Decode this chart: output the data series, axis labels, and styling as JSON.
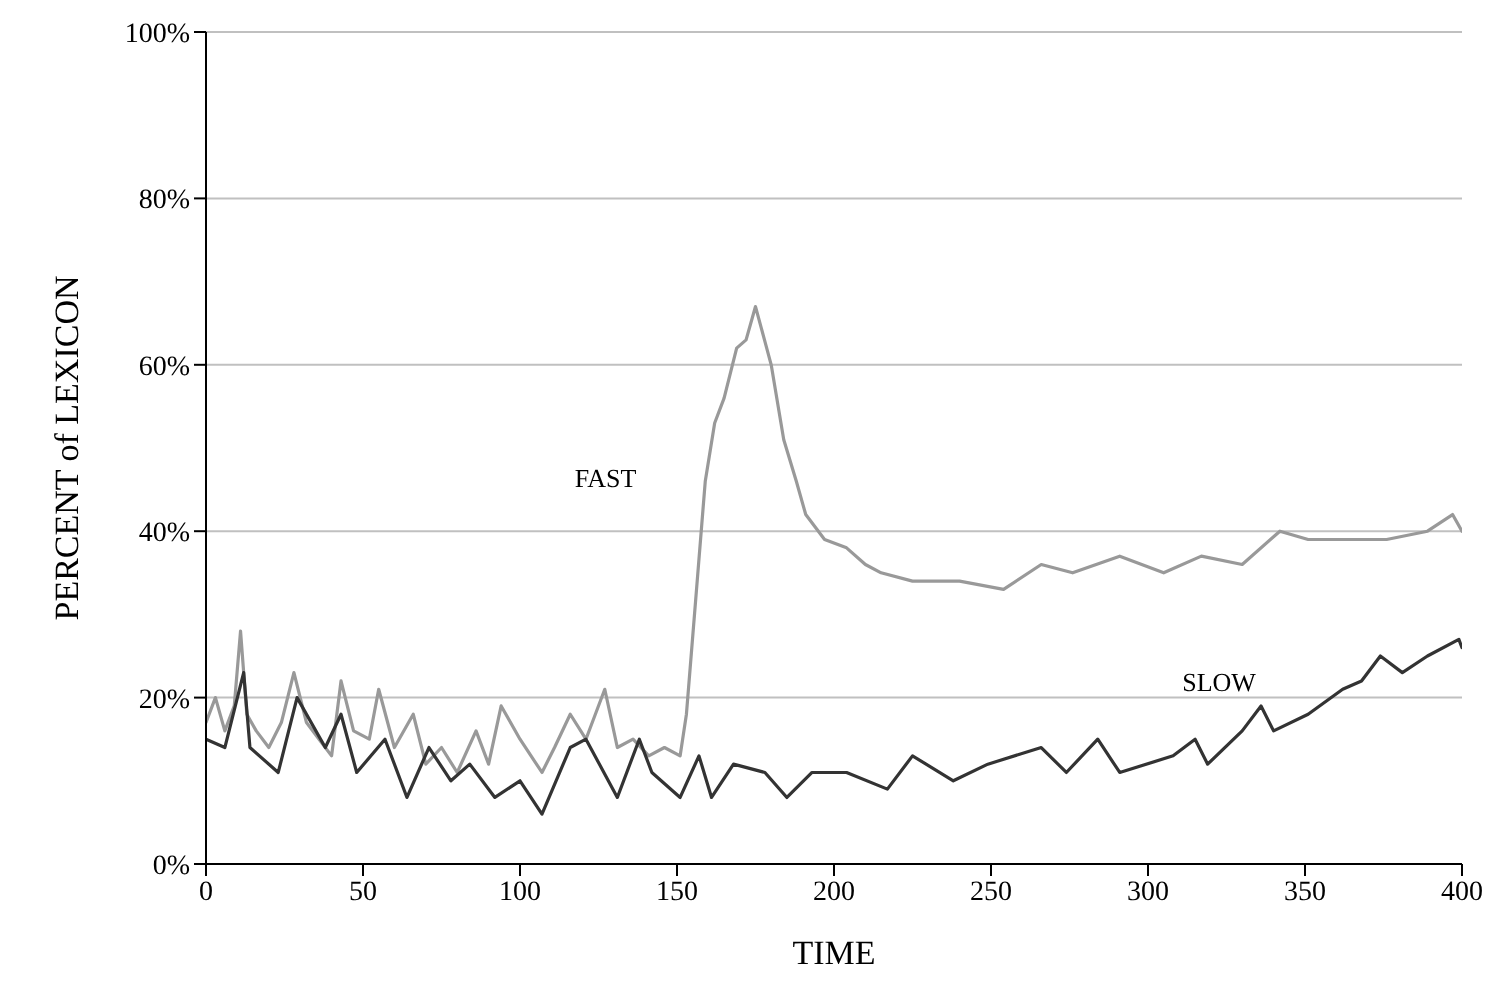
{
  "chart_data": {
    "type": "line",
    "xlabel": "TIME",
    "ylabel": "PERCENT of LEXICON",
    "xlim": [
      0,
      400
    ],
    "xticks": [
      0,
      50,
      100,
      150,
      200,
      250,
      300,
      350,
      400
    ],
    "ylim": [
      0,
      100
    ],
    "yticks": [
      {
        "value": 0,
        "label": "0%"
      },
      {
        "value": 20,
        "label": "20%"
      },
      {
        "value": 40,
        "label": "40%"
      },
      {
        "value": 60,
        "label": "60%"
      },
      {
        "value": 80,
        "label": "80%"
      },
      {
        "value": 100,
        "label": "100%"
      }
    ],
    "grid": "y",
    "marker": "none",
    "line_style": "solid",
    "series": [
      {
        "name": "FAST",
        "color": "#999999",
        "x": [
          0,
          3,
          6,
          9,
          11,
          13,
          16,
          20,
          24,
          28,
          32,
          36,
          40,
          43,
          47,
          52,
          55,
          60,
          66,
          70,
          75,
          80,
          86,
          90,
          94,
          100,
          107,
          111,
          116,
          121,
          127,
          131,
          136,
          141,
          146,
          151,
          153,
          156,
          159,
          162,
          165,
          169,
          172,
          175,
          180,
          184,
          188,
          191,
          197,
          204,
          210,
          215,
          225,
          240,
          254,
          266,
          276,
          291,
          305,
          317,
          330,
          342,
          351,
          364,
          376,
          389,
          397,
          400
        ],
        "values": [
          17,
          20,
          16,
          19,
          28,
          18,
          16,
          14,
          17,
          23,
          17,
          15,
          13,
          22,
          16,
          15,
          21,
          14,
          18,
          12,
          14,
          11,
          16,
          12,
          19,
          15,
          11,
          14,
          18,
          15,
          21,
          14,
          15,
          13,
          14,
          13,
          18,
          32,
          46,
          53,
          56,
          62,
          63,
          67,
          60,
          51,
          46,
          42,
          39,
          38,
          36,
          35,
          34,
          34,
          33,
          36,
          35,
          37,
          35,
          37,
          36,
          40,
          39,
          39,
          39,
          40,
          42,
          40
        ]
      },
      {
        "name": "SLOW",
        "color": "#333333",
        "x": [
          0,
          6,
          12,
          14,
          23,
          29,
          38,
          43,
          48,
          57,
          64,
          71,
          78,
          84,
          92,
          100,
          107,
          116,
          121,
          131,
          138,
          142,
          151,
          157,
          161,
          168,
          178,
          185,
          193,
          204,
          217,
          225,
          238,
          249,
          266,
          274,
          284,
          291,
          308,
          315,
          319,
          330,
          336,
          340,
          351,
          362,
          368,
          374,
          381,
          389,
          399,
          400
        ],
        "values": [
          15,
          14,
          23,
          14,
          11,
          20,
          14,
          18,
          11,
          15,
          8,
          14,
          10,
          12,
          8,
          10,
          6,
          14,
          15,
          8,
          15,
          11,
          8,
          13,
          8,
          12,
          11,
          8,
          11,
          11,
          9,
          13,
          10,
          12,
          14,
          11,
          15,
          11,
          13,
          15,
          12,
          16,
          19,
          16,
          18,
          21,
          22,
          25,
          23,
          25,
          27,
          26
        ]
      }
    ]
  }
}
